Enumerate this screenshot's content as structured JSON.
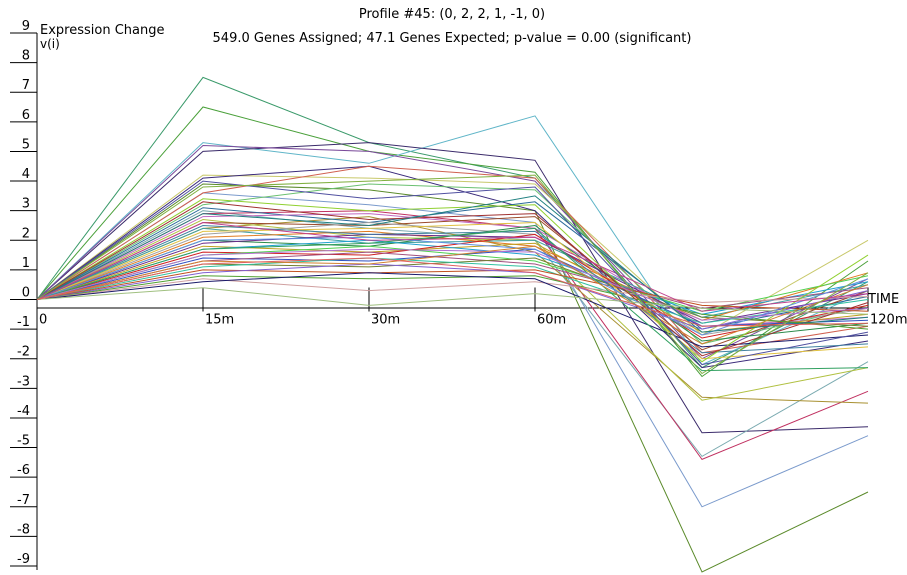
{
  "chart_data": {
    "type": "line",
    "title": "Profile #45: (0, 2, 2, 1, -1, 0)",
    "subtitle": "549.0 Genes Assigned; 47.1 Genes Expected; p-value = 0.00 (significant)",
    "ylabel": "Expression Change",
    "ylabel2": "v(i)",
    "xlabel": "TIME",
    "x_categories": [
      "0",
      "15m",
      "30m",
      "60m",
      "120m"
    ],
    "x_positions": [
      0,
      15,
      30,
      60,
      90,
      120
    ],
    "y_ticks": [
      "9",
      "8",
      "7",
      "6",
      "5",
      "4",
      "3",
      "2",
      "1",
      "0",
      "-1",
      "-2",
      "-3",
      "-4",
      "-5",
      "-6",
      "-7",
      "-8",
      "-9"
    ],
    "ylim": [
      -9,
      9
    ],
    "grid": false,
    "series": [
      {
        "color": "#3a9a6a",
        "values": [
          0,
          7.5,
          5.3,
          4.1,
          -2.3,
          0.6
        ]
      },
      {
        "color": "#4aa03a",
        "values": [
          0,
          6.5,
          5.0,
          4.3,
          -2.6,
          1.3
        ]
      },
      {
        "color": "#5fb5c8",
        "values": [
          0,
          5.3,
          4.6,
          6.2,
          -2.2,
          0.3
        ]
      },
      {
        "color": "#3a2a6a",
        "values": [
          0,
          5.0,
          5.3,
          4.7,
          -4.5,
          -4.3
        ]
      },
      {
        "color": "#7a4a9a",
        "values": [
          0,
          5.2,
          5.0,
          4.0,
          -2.0,
          0.7
        ]
      },
      {
        "color": "#c8c86a",
        "values": [
          0,
          4.2,
          4.1,
          3.9,
          -1.2,
          2.0
        ]
      },
      {
        "color": "#5a8a2a",
        "values": [
          0,
          3.9,
          3.7,
          3.0,
          -9.2,
          -6.5
        ]
      },
      {
        "color": "#7a9acc",
        "values": [
          0,
          3.6,
          3.2,
          2.6,
          -7.0,
          -4.6
        ]
      },
      {
        "color": "#7aaab0",
        "values": [
          0,
          3.0,
          2.4,
          2.0,
          -5.3,
          -2.1
        ]
      },
      {
        "color": "#c03060",
        "values": [
          0,
          2.9,
          3.0,
          2.4,
          -5.4,
          -3.1
        ]
      },
      {
        "color": "#a89030",
        "values": [
          0,
          2.4,
          2.8,
          1.6,
          -3.3,
          -3.5
        ]
      },
      {
        "color": "#b0c040",
        "values": [
          0,
          2.7,
          2.1,
          2.0,
          -3.4,
          -2.3
        ]
      },
      {
        "color": "#3a2a7a",
        "values": [
          0,
          4.1,
          4.5,
          3.0,
          -2.3,
          -1.4
        ]
      },
      {
        "color": "#d06050",
        "values": [
          0,
          3.6,
          4.5,
          4.1,
          -1.8,
          -0.9
        ]
      },
      {
        "color": "#6ac070",
        "values": [
          0,
          3.2,
          3.9,
          3.7,
          -1.5,
          -0.2
        ]
      },
      {
        "color": "#2a6a9a",
        "values": [
          0,
          3.1,
          2.6,
          3.3,
          -1.0,
          0.1
        ]
      },
      {
        "color": "#c06ac0",
        "values": [
          0,
          2.8,
          2.9,
          2.4,
          -0.9,
          -0.6
        ]
      },
      {
        "color": "#9a4a2a",
        "values": [
          0,
          2.6,
          2.5,
          2.8,
          -1.7,
          0.3
        ]
      },
      {
        "color": "#40a0a0",
        "values": [
          0,
          2.4,
          1.9,
          2.0,
          -0.6,
          0.5
        ]
      },
      {
        "color": "#a0a0a0",
        "values": [
          0,
          2.2,
          2.6,
          2.2,
          -1.2,
          -0.3
        ]
      },
      {
        "color": "#e07a20",
        "values": [
          0,
          2.1,
          2.3,
          1.8,
          -0.7,
          0.9
        ]
      },
      {
        "color": "#2a8a4a",
        "values": [
          0,
          2.0,
          1.8,
          2.5,
          -1.4,
          -0.8
        ]
      },
      {
        "color": "#6a2a8a",
        "values": [
          0,
          1.9,
          2.2,
          2.1,
          -0.8,
          0.2
        ]
      },
      {
        "color": "#c0a020",
        "values": [
          0,
          1.8,
          1.6,
          1.9,
          -1.1,
          -0.5
        ]
      },
      {
        "color": "#20a0d0",
        "values": [
          0,
          1.7,
          2.0,
          1.5,
          -0.5,
          0.6
        ]
      },
      {
        "color": "#d02020",
        "values": [
          0,
          1.6,
          1.5,
          2.2,
          -1.3,
          -0.2
        ]
      },
      {
        "color": "#50d050",
        "values": [
          0,
          1.5,
          1.8,
          1.3,
          -0.4,
          0.8
        ]
      },
      {
        "color": "#3050c0",
        "values": [
          0,
          1.4,
          1.3,
          1.7,
          -0.9,
          -0.7
        ]
      },
      {
        "color": "#a05080",
        "values": [
          0,
          1.3,
          1.6,
          1.2,
          -0.3,
          0.4
        ]
      },
      {
        "color": "#708030",
        "values": [
          0,
          1.2,
          1.1,
          1.4,
          -0.6,
          -0.9
        ]
      },
      {
        "color": "#30c0a0",
        "values": [
          0,
          1.1,
          1.4,
          1.1,
          -0.8,
          0.0
        ]
      },
      {
        "color": "#c05020",
        "values": [
          0,
          1.0,
          0.9,
          1.0,
          -0.2,
          -0.4
        ]
      },
      {
        "color": "#8060d0",
        "values": [
          0,
          0.9,
          1.2,
          0.9,
          -1.0,
          0.3
        ]
      },
      {
        "color": "#50a030",
        "values": [
          0,
          0.8,
          0.7,
          0.8,
          -0.5,
          -1.0
        ]
      },
      {
        "color": "#d0a0a0",
        "values": [
          0,
          0.7,
          0.3,
          0.6,
          -0.1,
          0.1
        ]
      },
      {
        "color": "#1a1a6a",
        "values": [
          0,
          0.6,
          0.9,
          0.7,
          -1.6,
          -1.2
        ]
      },
      {
        "color": "#e0c040",
        "values": [
          0,
          2.3,
          2.4,
          2.6,
          -2.0,
          -1.6
        ]
      },
      {
        "color": "#4080a0",
        "values": [
          0,
          2.5,
          2.2,
          2.3,
          -1.8,
          -1.5
        ]
      },
      {
        "color": "#90d030",
        "values": [
          0,
          3.4,
          3.0,
          3.2,
          -2.1,
          1.5
        ]
      },
      {
        "color": "#a03030",
        "values": [
          0,
          3.3,
          2.7,
          2.9,
          -1.9,
          -0.1
        ]
      },
      {
        "color": "#6090e0",
        "values": [
          0,
          2.0,
          2.1,
          1.7,
          -1.2,
          0.7
        ]
      },
      {
        "color": "#30a060",
        "values": [
          0,
          1.7,
          1.9,
          2.4,
          -2.4,
          -2.3
        ]
      },
      {
        "color": "#b070d0",
        "values": [
          0,
          1.5,
          1.7,
          1.6,
          -0.7,
          -0.3
        ]
      },
      {
        "color": "#d08030",
        "values": [
          0,
          1.3,
          1.2,
          1.8,
          -1.5,
          0.5
        ]
      },
      {
        "color": "#208080",
        "values": [
          0,
          2.9,
          2.5,
          3.5,
          -1.1,
          -0.6
        ]
      },
      {
        "color": "#c04090",
        "values": [
          0,
          2.6,
          2.0,
          2.1,
          -0.4,
          0.2
        ]
      },
      {
        "color": "#a0c080",
        "values": [
          0,
          0.4,
          -0.2,
          0.2,
          -0.3,
          -0.5
        ]
      },
      {
        "color": "#5050a0",
        "values": [
          0,
          4.0,
          3.4,
          3.8,
          -2.2,
          -1.1
        ]
      },
      {
        "color": "#80b040",
        "values": [
          0,
          3.8,
          4.0,
          4.2,
          -2.5,
          0.9
        ]
      },
      {
        "color": "#e06060",
        "values": [
          0,
          1.2,
          1.4,
          0.9,
          -0.9,
          -0.8
        ]
      }
    ]
  },
  "colors": {
    "background": "#ffffff",
    "axis": "#000000"
  }
}
